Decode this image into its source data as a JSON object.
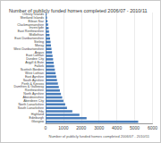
{
  "chart_data": {
    "type": "bar",
    "orientation": "horizontal",
    "title": "Number of publicly funded homes completed 2006/07 - 2010/11",
    "x_label": "Number of publicly funded homes completed 2006/07 - 2010/11",
    "categories": [
      "Orkney Islands",
      "Shetland Islands",
      "Eilean Siar",
      "Clackmannanshire",
      "Inverclyde",
      "East Renfrewshire",
      "Midlothian",
      "East Dunbartonshire",
      "Stirling",
      "Moray",
      "West Dunbartonshire",
      "Angus",
      "East Lothian",
      "Dundee City",
      "Argyll & Bute",
      "Falkirk",
      "Scottish Borders",
      "West Lothian",
      "East Ayrshire",
      "South Ayrshire",
      "Perth & Kinross",
      "Dumfries & Galloway",
      "Renfrewshire",
      "North Ayrshire",
      "Aberdeenshire",
      "Aberdeen City",
      "North Lanarkshire",
      "South Lanarkshire",
      "Fife",
      "Highland",
      "Edinburgh",
      "Glasgow"
    ],
    "values": [
      60,
      80,
      110,
      140,
      170,
      190,
      220,
      250,
      280,
      300,
      330,
      360,
      390,
      420,
      450,
      480,
      520,
      560,
      600,
      640,
      690,
      740,
      800,
      860,
      930,
      1000,
      1100,
      1200,
      1500,
      1900,
      2300,
      5200
    ],
    "color": "#4a7ebb",
    "xlim": [
      0,
      6000
    ],
    "xticks": [
      0,
      1000,
      2000,
      3000,
      4000,
      5000,
      6000
    ],
    "grid": true
  }
}
